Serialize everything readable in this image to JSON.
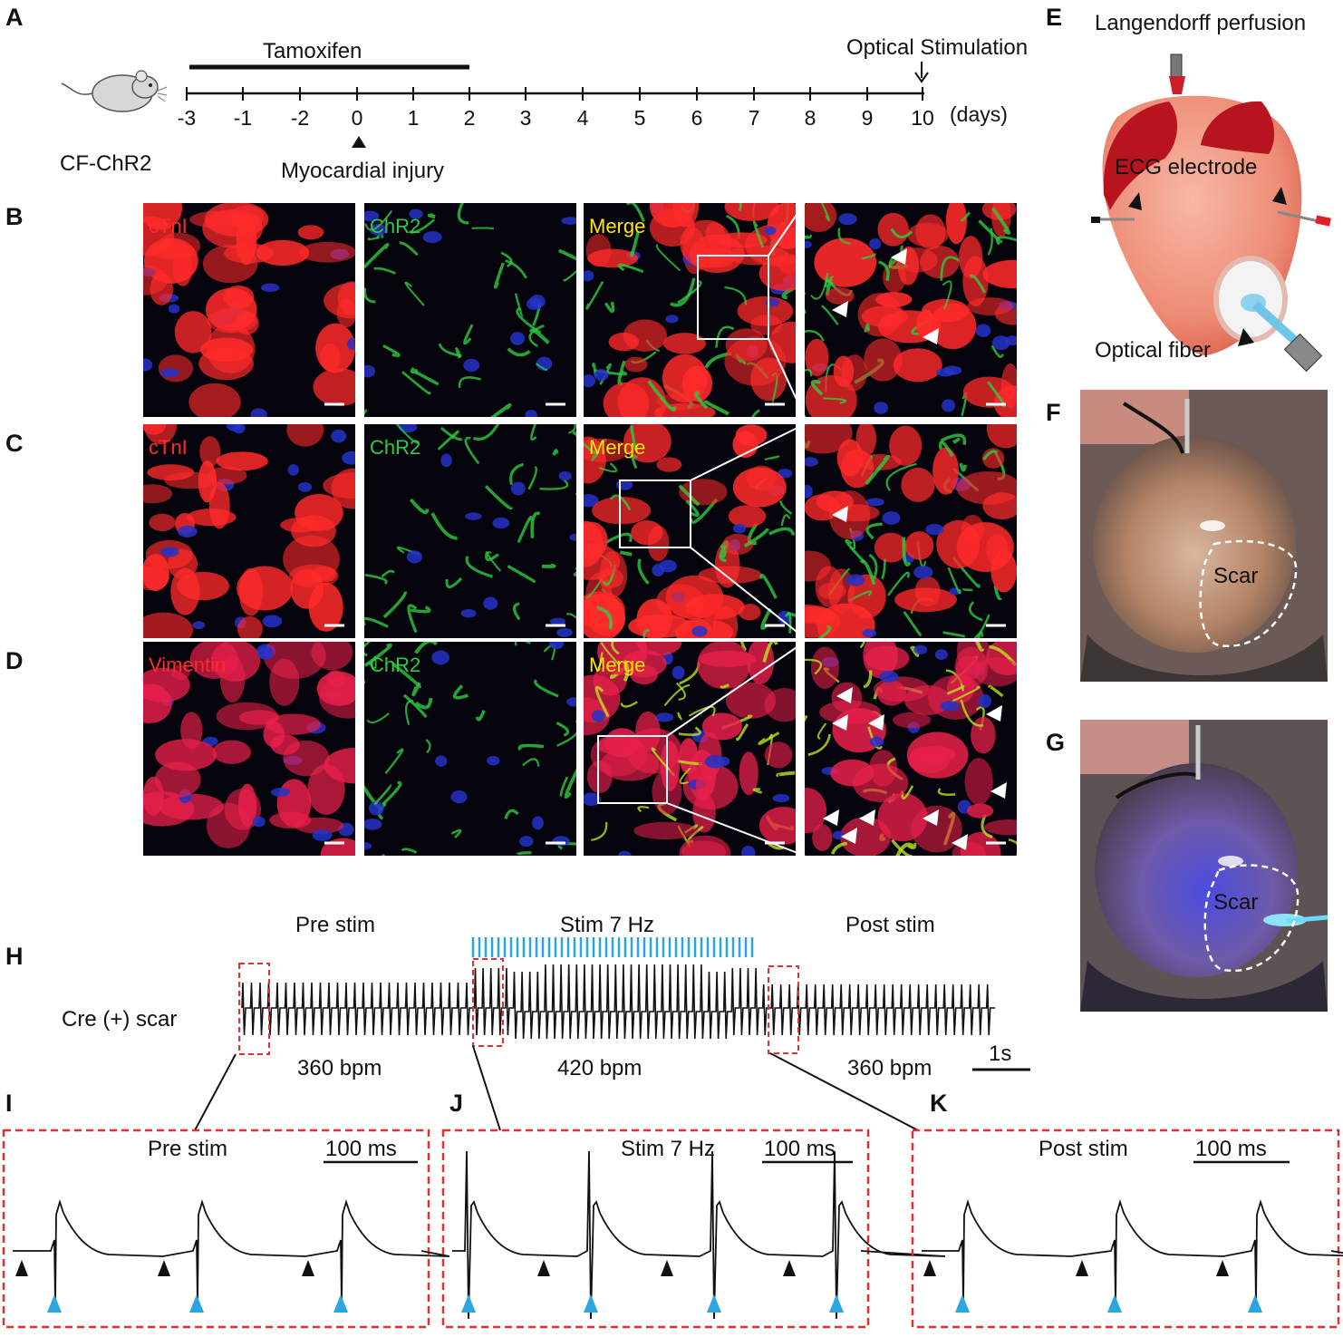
{
  "panels": {
    "A": "A",
    "B": "B",
    "C": "C",
    "D": "D",
    "E": "E",
    "F": "F",
    "G": "G",
    "H": "H",
    "I": "I",
    "J": "J",
    "K": "K"
  },
  "timeline": {
    "mouse_label": "CF-ChR2",
    "treatment": "Tamoxifen",
    "treatment_days": [
      -3,
      2
    ],
    "event_end": "Optical Stimulation",
    "event_start": "Myocardial injury",
    "ticks": [
      "-3",
      "-1",
      "-2",
      "0",
      "1",
      "2",
      "3",
      "4",
      "5",
      "6",
      "7",
      "8",
      "9",
      "10"
    ],
    "unit": "(days)"
  },
  "micrographs": {
    "row_B": [
      "cTnI",
      "ChR2",
      "Merge"
    ],
    "row_C": [
      "cTnI",
      "ChR2",
      "Merge"
    ],
    "row_D": [
      "Vimentin",
      "ChR2",
      "Merge"
    ],
    "colors": {
      "red_stain": "#ff2a2a",
      "green_stain": "#2ecc40",
      "merge": "#ffe600",
      "nuclei": "#2433c8"
    }
  },
  "heart_diagram": {
    "title": "Langendorff perfusion",
    "electrode": "ECG electrode",
    "fiber": "Optical fiber"
  },
  "photos": {
    "F": {
      "label": "Scar"
    },
    "G": {
      "label": "Scar"
    }
  },
  "ecg": {
    "row_label": "Cre (+) scar",
    "segments": [
      {
        "title": "Pre stim",
        "rate": "360  bpm"
      },
      {
        "title": "Stim 7 Hz",
        "rate": "420  bpm"
      },
      {
        "title": "Post stim",
        "rate": "360  bpm"
      }
    ],
    "scale": "1s",
    "insets": [
      {
        "title": "Pre stim",
        "scale": "100 ms"
      },
      {
        "title": "Stim 7 Hz",
        "scale": "100 ms"
      },
      {
        "title": "Post stim",
        "scale": "100 ms"
      }
    ],
    "colors": {
      "stim_marker": "#2aa6e0",
      "box": "#e03030",
      "trace": "#111111"
    }
  }
}
